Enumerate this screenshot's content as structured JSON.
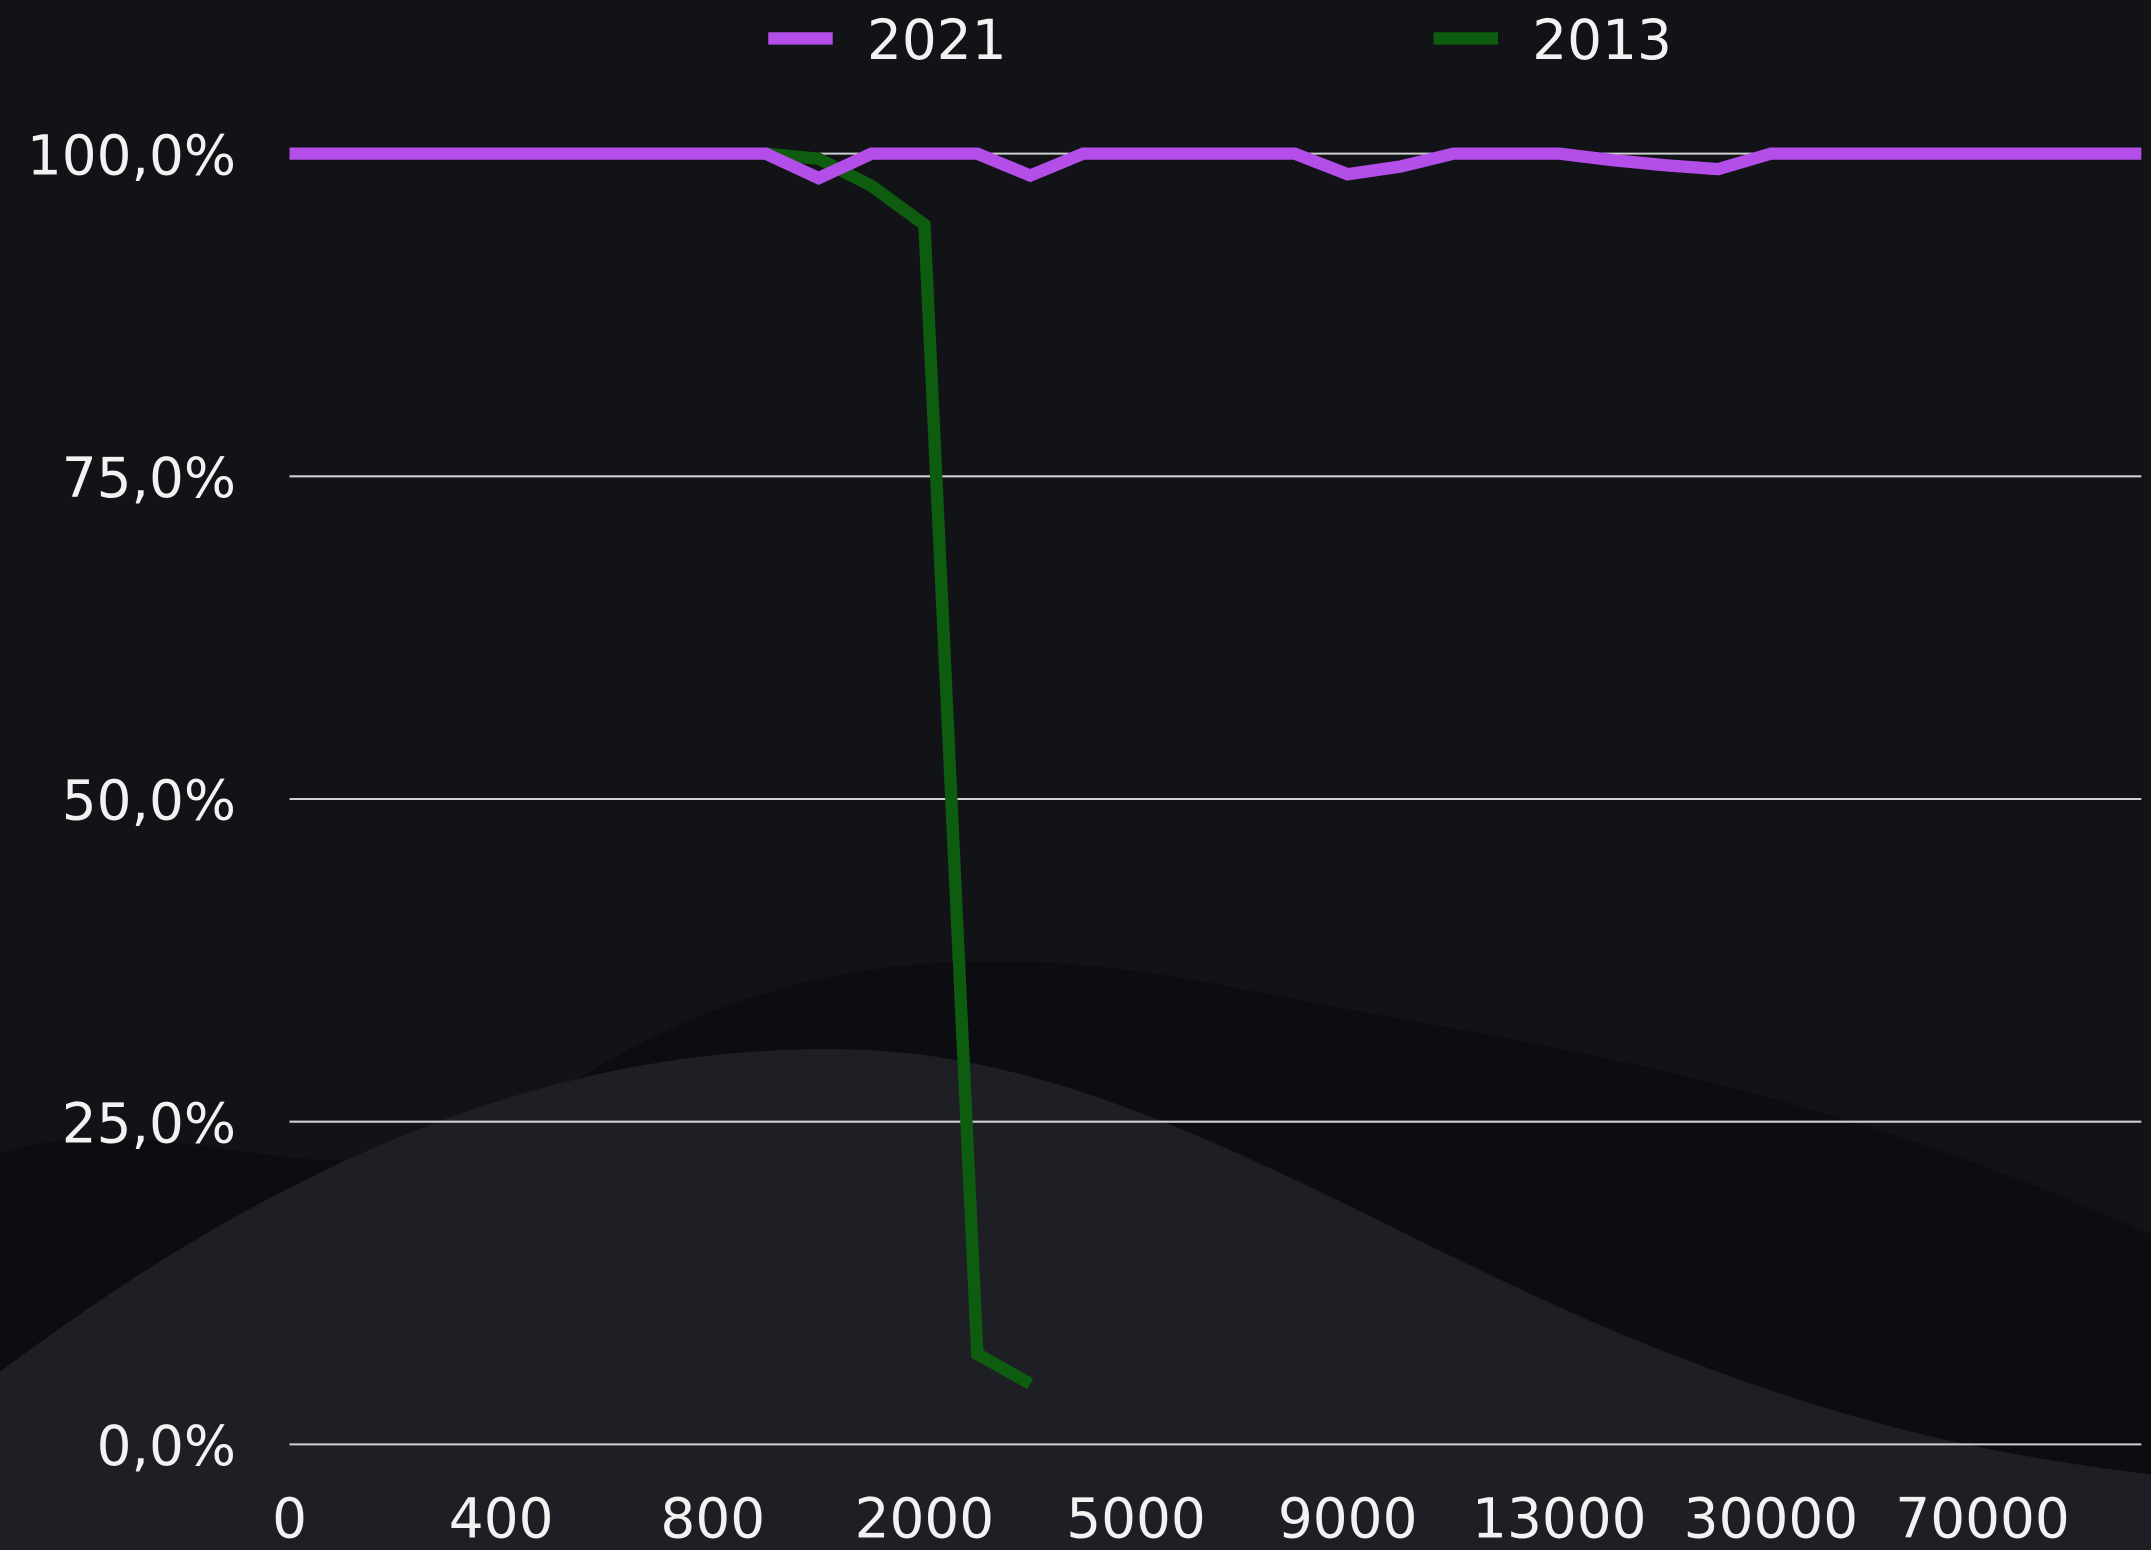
{
  "chart_data": {
    "type": "line",
    "categories": [
      "0",
      null,
      null,
      null,
      "400",
      null,
      null,
      null,
      "800",
      null,
      null,
      null,
      "2000",
      null,
      null,
      null,
      "5000",
      null,
      null,
      null,
      "9000",
      null,
      null,
      null,
      "13000",
      null,
      null,
      null,
      "30000",
      null,
      null,
      null,
      "70000",
      null,
      null,
      null
    ],
    "series": [
      {
        "name": "2021",
        "color": "#b44ee8",
        "values": [
          100,
          100,
          100,
          100,
          100,
          100,
          100,
          100,
          100,
          100,
          98.1,
          100,
          100,
          100,
          98.3,
          100,
          100,
          100,
          100,
          100,
          98.4,
          99.0,
          100,
          100,
          100,
          99.5,
          99.1,
          98.8,
          100,
          100,
          100,
          100,
          100,
          100,
          100,
          100
        ]
      },
      {
        "name": "2013",
        "color": "#0e5c10",
        "values": [
          null,
          null,
          null,
          null,
          null,
          null,
          null,
          null,
          null,
          100,
          99.6,
          97.5,
          94.5,
          7.0,
          4.7,
          null,
          null,
          null,
          null,
          null,
          null,
          null,
          null,
          null,
          null,
          null,
          null,
          null,
          null,
          null,
          null,
          null,
          null,
          null,
          null,
          null
        ]
      }
    ],
    "ylim": [
      0,
      100
    ],
    "yticks": [
      {
        "value": 0,
        "label": "0,0%"
      },
      {
        "value": 25,
        "label": "25,0%"
      },
      {
        "value": 50,
        "label": "50,0%"
      },
      {
        "value": 75,
        "label": "75,0%"
      },
      {
        "value": 100,
        "label": "100,0%"
      }
    ],
    "grid": true,
    "legend": "top"
  }
}
